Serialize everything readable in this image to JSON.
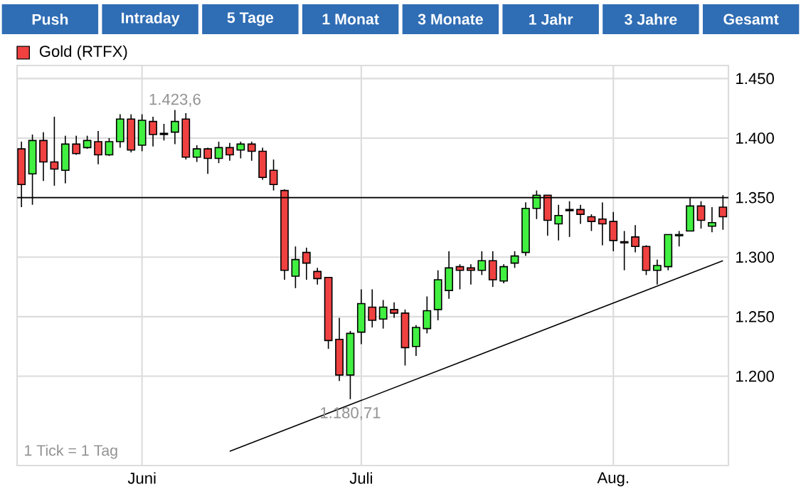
{
  "chart_data": {
    "type": "candlestick",
    "series": [
      {
        "name": "Gold (RTFX)",
        "color": "#f04141",
        "ohlc": [
          [
            1391,
            1397,
            1342,
            1361
          ],
          [
            1370,
            1403,
            1344,
            1398
          ],
          [
            1398,
            1405,
            1364,
            1380
          ],
          [
            1380,
            1418,
            1360,
            1374
          ],
          [
            1373,
            1402,
            1362,
            1395
          ],
          [
            1395,
            1402,
            1386,
            1387
          ],
          [
            1392,
            1402,
            1391,
            1398
          ],
          [
            1397,
            1406,
            1378,
            1386
          ],
          [
            1386,
            1400,
            1385,
            1397
          ],
          [
            1397,
            1420,
            1392,
            1416
          ],
          [
            1416,
            1420,
            1388,
            1390
          ],
          [
            1394,
            1420,
            1389,
            1415
          ],
          [
            1414,
            1418,
            1393,
            1403
          ],
          [
            1403,
            1412,
            1398,
            1404
          ],
          [
            1405,
            1423.6,
            1395,
            1414
          ],
          [
            1416,
            1421,
            1382,
            1384
          ],
          [
            1384,
            1394,
            1380,
            1391
          ],
          [
            1391,
            1392,
            1370,
            1383
          ],
          [
            1383,
            1397,
            1379,
            1392
          ],
          [
            1392,
            1396,
            1381,
            1386
          ],
          [
            1390,
            1397,
            1383,
            1395
          ],
          [
            1395,
            1397,
            1381,
            1389
          ],
          [
            1389,
            1392,
            1365,
            1367
          ],
          [
            1373,
            1382,
            1356,
            1361
          ],
          [
            1356,
            1357,
            1281,
            1289
          ],
          [
            1284,
            1309,
            1274,
            1298
          ],
          [
            1304,
            1308,
            1281,
            1295
          ],
          [
            1288,
            1291,
            1277,
            1282
          ],
          [
            1283,
            1283,
            1223,
            1230
          ],
          [
            1231,
            1249,
            1196,
            1201
          ],
          [
            1201,
            1238,
            1180.71,
            1236
          ],
          [
            1237,
            1273,
            1227,
            1261
          ],
          [
            1258,
            1273,
            1241,
            1247
          ],
          [
            1248,
            1264,
            1240,
            1258
          ],
          [
            1256,
            1262,
            1249,
            1253
          ],
          [
            1253,
            1256,
            1209,
            1224
          ],
          [
            1225,
            1243,
            1217,
            1241
          ],
          [
            1240,
            1267,
            1236,
            1255
          ],
          [
            1256,
            1289,
            1247,
            1281
          ],
          [
            1272,
            1305,
            1265,
            1291
          ],
          [
            1292,
            1294,
            1273,
            1289
          ],
          [
            1291,
            1294,
            1277,
            1289
          ],
          [
            1289,
            1305,
            1285,
            1297
          ],
          [
            1297,
            1305,
            1275,
            1281
          ],
          [
            1280,
            1294,
            1278,
            1292
          ],
          [
            1295,
            1305,
            1291,
            1301
          ],
          [
            1304,
            1346,
            1301,
            1341
          ],
          [
            1341,
            1356,
            1332,
            1352
          ],
          [
            1352,
            1352,
            1318,
            1331
          ],
          [
            1328,
            1344,
            1314,
            1335
          ],
          [
            1339,
            1347,
            1317,
            1340
          ],
          [
            1340,
            1344,
            1328,
            1336
          ],
          [
            1334,
            1336,
            1322,
            1330
          ],
          [
            1332,
            1346,
            1310,
            1328
          ],
          [
            1330,
            1338,
            1305,
            1314
          ],
          [
            1313,
            1322,
            1289,
            1312
          ],
          [
            1317,
            1327,
            1304,
            1309
          ],
          [
            1309,
            1310,
            1285,
            1289
          ],
          [
            1289,
            1298,
            1277,
            1293
          ],
          [
            1292,
            1319,
            1289,
            1319
          ],
          [
            1318,
            1322,
            1309,
            1319
          ],
          [
            1322,
            1350,
            1322,
            1343
          ],
          [
            1343,
            1347,
            1324,
            1331
          ],
          [
            1326,
            1342,
            1321,
            1329
          ],
          [
            1342,
            1352,
            1323,
            1334
          ]
        ],
        "colors": [
          "#f04141",
          "#41f041",
          "#f04141",
          "#f04141",
          "#41f041",
          "#f04141",
          "#41f041",
          "#f04141",
          "#41f041",
          "#41f041",
          "#f04141",
          "#41f041",
          "#f04141",
          "#41f041",
          "#41f041",
          "#f04141",
          "#41f041",
          "#f04141",
          "#41f041",
          "#f04141",
          "#41f041",
          "#f04141",
          "#f04141",
          "#f04141",
          "#f04141",
          "#41f041",
          "#f04141",
          "#f04141",
          "#f04141",
          "#f04141",
          "#41f041",
          "#41f041",
          "#f04141",
          "#41f041",
          "#f04141",
          "#f04141",
          "#41f041",
          "#41f041",
          "#41f041",
          "#41f041",
          "#f04141",
          "#f04141",
          "#41f041",
          "#f04141",
          "#41f041",
          "#41f041",
          "#41f041",
          "#41f041",
          "#f04141",
          "#41f041",
          "#41f041",
          "#f04141",
          "#f04141",
          "#f04141",
          "#f04141",
          "#f04141",
          "#f04141",
          "#f04141",
          "#41f041",
          "#41f041",
          "#41f041",
          "#41f041",
          "#f04141",
          "#41f041",
          "#f04141"
        ]
      },
      {
        "type": "line",
        "color": "#000000",
        "values": [
          null,
          null,
          null,
          null,
          null,
          null,
          null,
          null,
          null,
          null,
          null,
          null,
          null,
          null,
          null,
          null,
          null,
          null,
          null,
          1137,
          null,
          null,
          null,
          null,
          null,
          null,
          null,
          null,
          null,
          null,
          null,
          null,
          null,
          null,
          null,
          null,
          null,
          null,
          null,
          null,
          null,
          null,
          null,
          null,
          null,
          null,
          null,
          null,
          null,
          null,
          null,
          null,
          null,
          null,
          null,
          null,
          null,
          null,
          null,
          null,
          null,
          null,
          null,
          null,
          1297
        ]
      }
    ],
    "categories": [
      null,
      null,
      null,
      null,
      null,
      null,
      null,
      null,
      null,
      null,
      null,
      "Juni",
      null,
      null,
      null,
      null,
      null,
      null,
      null,
      null,
      null,
      null,
      null,
      null,
      null,
      null,
      null,
      null,
      null,
      null,
      null,
      "Juli",
      null,
      null,
      null,
      null,
      null,
      null,
      null,
      null,
      null,
      null,
      null,
      null,
      null,
      null,
      null,
      null,
      null,
      null,
      null,
      null,
      null,
      null,
      "Aug.",
      null,
      null,
      null,
      null,
      null,
      null,
      null,
      null,
      null,
      null
    ],
    "ylim": [
      1125,
      1461
    ],
    "yticks": [
      {
        "value": 1200,
        "label": "1.200"
      },
      {
        "value": 1250,
        "label": "1.250"
      },
      {
        "value": 1300,
        "label": "1.300"
      },
      {
        "value": 1350,
        "label": "1.350"
      },
      {
        "value": 1400,
        "label": "1.400"
      },
      {
        "value": 1450,
        "label": "1.450"
      }
    ],
    "ref_lines": [
      {
        "axis": "y",
        "value": 1350,
        "color": "#000000"
      }
    ],
    "grid": true,
    "legend": "top left",
    "annotations": [
      "Push",
      "Intraday",
      "5 Tage",
      "1 Monat",
      "3 Monate",
      "1 Jahr",
      "3 Jahre",
      "Gesamt",
      "1 Tick = 1 Tag",
      {
        "text": "1.423,6",
        "y": 1423.6
      },
      {
        "text": "1.180,71",
        "y": 1180.71
      }
    ]
  }
}
